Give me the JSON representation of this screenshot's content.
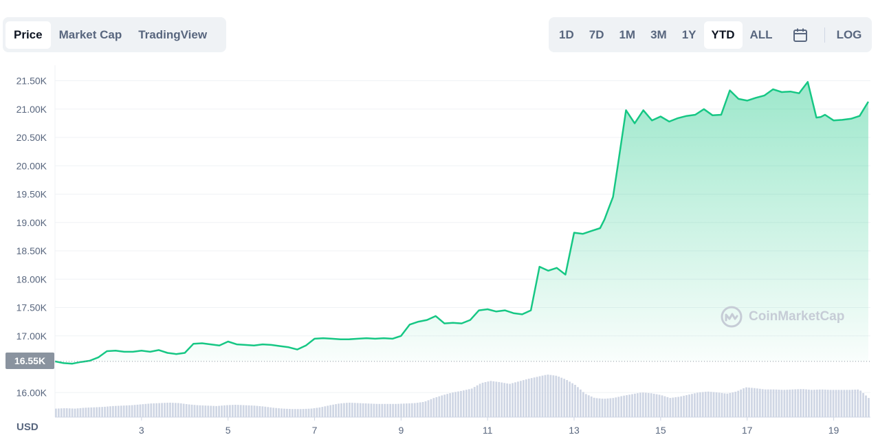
{
  "tabs_left": [
    "Price",
    "Market Cap",
    "TradingView"
  ],
  "active_left": 0,
  "tabs_right": [
    "1D",
    "7D",
    "1M",
    "3M",
    "1Y",
    "YTD",
    "ALL"
  ],
  "active_right": 5,
  "log_label": "LOG",
  "icons": {
    "calendar": "calendar-icon",
    "logo": "coinmarketcap-logo-icon"
  },
  "watermark_text": "CoinMarketCap",
  "currency_label": "USD",
  "current_price_label": "16.55K",
  "colors": {
    "line": "#16c784",
    "area_top": "#16c784",
    "volume": "#cfd6e4",
    "grid": "#eff2f5",
    "text": "#58667e"
  },
  "chart_data": {
    "type": "area",
    "y_tick_labels": [
      "21.50K",
      "21.00K",
      "20.50K",
      "20.00K",
      "19.50K",
      "19.00K",
      "18.50K",
      "18.00K",
      "17.50K",
      "17.00K",
      "16.55K",
      "16.00K"
    ],
    "y_ticks": [
      21500,
      21000,
      20500,
      20000,
      19500,
      19000,
      18500,
      18000,
      17500,
      17000,
      16000
    ],
    "x_tick_labels": [
      "3",
      "5",
      "7",
      "9",
      "11",
      "13",
      "15",
      "17",
      "19"
    ],
    "x_ticks": [
      3,
      5,
      7,
      9,
      11,
      13,
      15,
      17,
      19
    ],
    "xlim": [
      1,
      19.85
    ],
    "ylim": [
      15700,
      21750
    ],
    "current_price": 16550,
    "series": [
      {
        "x": [
          1,
          1.2,
          1.4,
          1.6,
          1.8,
          2,
          2.2,
          2.4,
          2.6,
          2.8,
          3,
          3.2,
          3.4,
          3.6,
          3.8,
          4,
          4.2,
          4.4,
          4.6,
          4.8,
          5,
          5.2,
          5.4,
          5.6,
          5.8,
          6,
          6.2,
          6.4,
          6.6,
          6.8,
          7,
          7.2,
          7.4,
          7.6,
          7.8,
          8,
          8.2,
          8.4,
          8.6,
          8.8,
          9,
          9.2,
          9.4,
          9.6,
          9.8,
          10,
          10.2,
          10.4,
          10.6,
          10.8,
          11,
          11.2,
          11.4,
          11.6,
          11.8,
          12,
          12.2,
          12.4,
          12.6,
          12.8,
          13,
          13.2,
          13.4,
          13.6,
          13.7,
          13.8,
          13.9,
          14,
          14.2,
          14.4,
          14.6,
          14.8,
          15,
          15.2,
          15.4,
          15.6,
          15.8,
          16,
          16.2,
          16.4,
          16.6,
          16.8,
          17,
          17.2,
          17.4,
          17.6,
          17.8,
          18,
          18.2,
          18.4,
          18.6,
          18.7,
          18.8,
          19,
          19.2,
          19.4,
          19.6,
          19.8
        ],
        "values": [
          16550,
          16520,
          16510,
          16540,
          16560,
          16620,
          16730,
          16740,
          16720,
          16720,
          16740,
          16720,
          16750,
          16700,
          16680,
          16700,
          16860,
          16870,
          16850,
          16830,
          16900,
          16850,
          16840,
          16830,
          16850,
          16840,
          16820,
          16800,
          16760,
          16830,
          16950,
          16960,
          16950,
          16940,
          16940,
          16950,
          16960,
          16950,
          16960,
          16950,
          17000,
          17200,
          17250,
          17280,
          17350,
          17220,
          17230,
          17220,
          17280,
          17450,
          17470,
          17430,
          17450,
          17400,
          17380,
          17450,
          18220,
          18150,
          18200,
          18080,
          18820,
          18800,
          18850,
          18900,
          19050,
          19250,
          19450,
          19950,
          20980,
          20750,
          20980,
          20800,
          20870,
          20780,
          20840,
          20880,
          20900,
          21000,
          20890,
          20900,
          21330,
          21180,
          21150,
          21200,
          21240,
          21350,
          21300,
          21310,
          21280,
          21480,
          20850,
          20860,
          20900,
          20800,
          20810,
          20830,
          20880,
          21130
        ]
      }
    ],
    "volume": [
      0.2,
      0.21,
      0.2,
      0.22,
      0.23,
      0.24,
      0.26,
      0.27,
      0.28,
      0.3,
      0.32,
      0.33,
      0.34,
      0.33,
      0.3,
      0.28,
      0.27,
      0.26,
      0.28,
      0.29,
      0.28,
      0.27,
      0.25,
      0.22,
      0.2,
      0.19,
      0.19,
      0.2,
      0.23,
      0.28,
      0.32,
      0.34,
      0.33,
      0.32,
      0.31,
      0.31,
      0.31,
      0.32,
      0.33,
      0.36,
      0.45,
      0.52,
      0.58,
      0.62,
      0.67,
      0.8,
      0.85,
      0.82,
      0.78,
      0.84,
      0.9,
      0.95,
      1.0,
      0.97,
      0.88,
      0.75,
      0.55,
      0.45,
      0.43,
      0.45,
      0.5,
      0.54,
      0.58,
      0.56,
      0.52,
      0.45,
      0.48,
      0.53,
      0.58,
      0.6,
      0.58,
      0.55,
      0.6,
      0.7,
      0.68,
      0.65,
      0.65,
      0.64,
      0.65,
      0.66,
      0.64,
      0.65,
      0.64,
      0.64,
      0.64,
      0.65,
      0.45
    ]
  }
}
